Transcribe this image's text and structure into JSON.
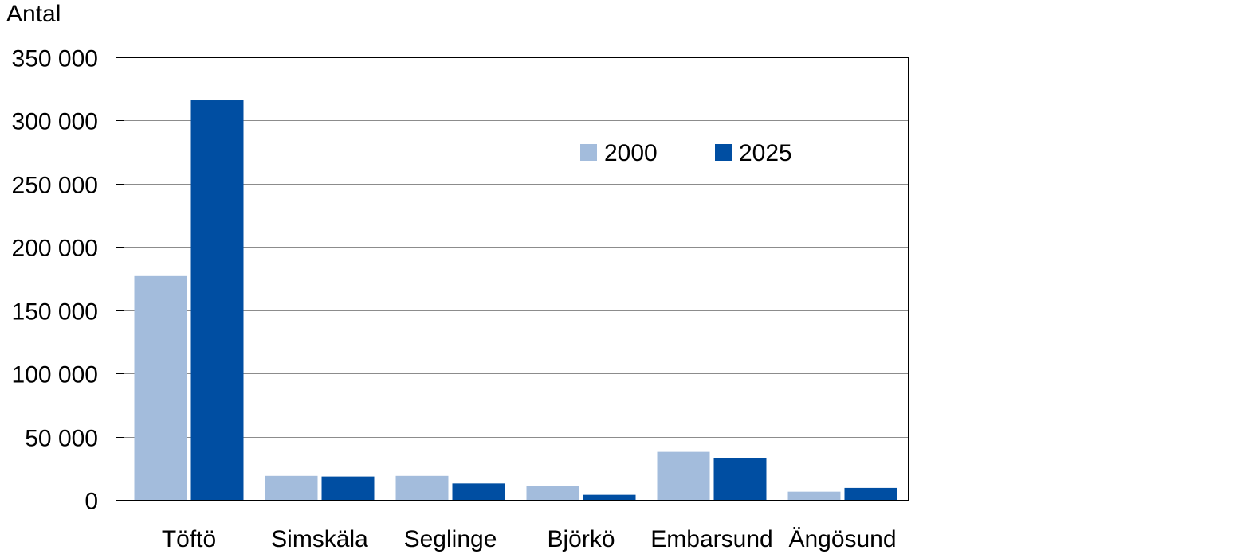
{
  "chart_data": {
    "type": "bar",
    "title": "",
    "xlabel": "",
    "ylabel": "Antal",
    "categories": [
      "Töftö",
      "Simskäla",
      "Seglinge",
      "Björkö",
      "Embarsund",
      "Ängösund"
    ],
    "series": [
      {
        "name": "2000",
        "color": "#a3bcdc",
        "values": [
          177000,
          19000,
          19000,
          11000,
          38000,
          6500
        ]
      },
      {
        "name": "2025",
        "color": "#004ea2",
        "values": [
          316000,
          18500,
          13000,
          4000,
          33000,
          9500
        ]
      }
    ],
    "ylim": [
      0,
      350000
    ],
    "yticks": [
      0,
      50000,
      100000,
      150000,
      200000,
      250000,
      300000,
      350000
    ],
    "ytick_labels": [
      "0",
      "50 000",
      "100 000",
      "150 000",
      "200 000",
      "250 000",
      "300 000",
      "350 000"
    ],
    "grid": true,
    "legend_position": "top-right"
  }
}
